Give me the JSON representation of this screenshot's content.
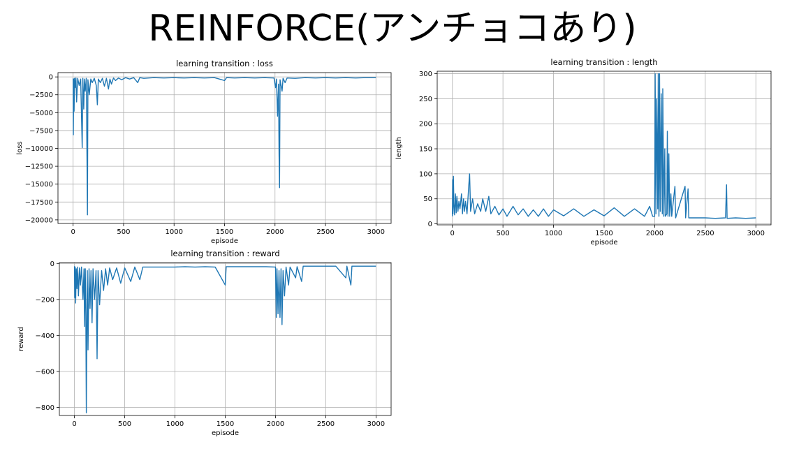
{
  "page": {
    "title": "REINFORCE(アンチョコあり)"
  },
  "chart_data": [
    {
      "id": "loss",
      "type": "line",
      "title": "learning transition : loss",
      "xlabel": "episode",
      "ylabel": "loss",
      "xlim": [
        -150,
        3150
      ],
      "ylim": [
        -20500,
        600
      ],
      "xticks": [
        0,
        500,
        1000,
        1500,
        2000,
        2500,
        3000
      ],
      "yticks": [
        0,
        -2500,
        -5000,
        -7500,
        -10000,
        -12500,
        -15000,
        -17500,
        -20000
      ],
      "ytick_labels": [
        "0",
        "−2500",
        "−5000",
        "−7500",
        "−10000",
        "−12500",
        "−15000",
        "−17500",
        "−20000"
      ],
      "grid": true,
      "color": "#1f77b4",
      "series": [
        {
          "values": [
            [
              0,
              -200
            ],
            [
              2,
              -8100
            ],
            [
              6,
              -300
            ],
            [
              10,
              -4800
            ],
            [
              14,
              -200
            ],
            [
              20,
              -1500
            ],
            [
              28,
              -150
            ],
            [
              35,
              -3500
            ],
            [
              45,
              -200
            ],
            [
              60,
              -1200
            ],
            [
              75,
              -300
            ],
            [
              90,
              -9900
            ],
            [
              96,
              -200
            ],
            [
              105,
              -4500
            ],
            [
              112,
              -300
            ],
            [
              120,
              -2000
            ],
            [
              130,
              -200
            ],
            [
              138,
              -11800
            ],
            [
              142,
              -19300
            ],
            [
              147,
              -400
            ],
            [
              160,
              -2500
            ],
            [
              175,
              -300
            ],
            [
              190,
              -800
            ],
            [
              210,
              -200
            ],
            [
              230,
              -1200
            ],
            [
              240,
              -3900
            ],
            [
              250,
              -300
            ],
            [
              270,
              -800
            ],
            [
              290,
              -200
            ],
            [
              310,
              -1300
            ],
            [
              330,
              -200
            ],
            [
              350,
              -1700
            ],
            [
              365,
              -300
            ],
            [
              380,
              -1000
            ],
            [
              400,
              -150
            ],
            [
              420,
              -500
            ],
            [
              450,
              -150
            ],
            [
              480,
              -400
            ],
            [
              520,
              -100
            ],
            [
              560,
              -300
            ],
            [
              600,
              -100
            ],
            [
              640,
              -800
            ],
            [
              660,
              -100
            ],
            [
              700,
              -200
            ],
            [
              800,
              -100
            ],
            [
              900,
              -150
            ],
            [
              1000,
              -100
            ],
            [
              1100,
              -150
            ],
            [
              1200,
              -100
            ],
            [
              1300,
              -150
            ],
            [
              1400,
              -100
            ],
            [
              1500,
              -500
            ],
            [
              1520,
              -100
            ],
            [
              1600,
              -150
            ],
            [
              1700,
              -100
            ],
            [
              1800,
              -150
            ],
            [
              1900,
              -100
            ],
            [
              1990,
              -150
            ],
            [
              2005,
              -1500
            ],
            [
              2015,
              -300
            ],
            [
              2025,
              -5500
            ],
            [
              2035,
              -1000
            ],
            [
              2040,
              -11000
            ],
            [
              2045,
              -15500
            ],
            [
              2050,
              -400
            ],
            [
              2070,
              -2000
            ],
            [
              2080,
              -200
            ],
            [
              2100,
              -800
            ],
            [
              2120,
              -150
            ],
            [
              2200,
              -200
            ],
            [
              2300,
              -100
            ],
            [
              2400,
              -150
            ],
            [
              2500,
              -100
            ],
            [
              2600,
              -150
            ],
            [
              2700,
              -100
            ],
            [
              2800,
              -150
            ],
            [
              2900,
              -100
            ],
            [
              3000,
              -100
            ]
          ]
        }
      ]
    },
    {
      "id": "length",
      "type": "line",
      "title": "learning transition : length",
      "xlabel": "episode",
      "ylabel": "length",
      "xlim": [
        -150,
        3150
      ],
      "ylim": [
        -2,
        305
      ],
      "xticks": [
        0,
        500,
        1000,
        1500,
        2000,
        2500,
        3000
      ],
      "yticks": [
        0,
        50,
        100,
        150,
        200,
        250,
        300
      ],
      "ytick_labels": [
        "0",
        "50",
        "100",
        "150",
        "200",
        "250",
        "300"
      ],
      "grid": true,
      "color": "#1f77b4",
      "series": [
        {
          "values": [
            [
              0,
              15
            ],
            [
              3,
              88
            ],
            [
              6,
              20
            ],
            [
              10,
              95
            ],
            [
              15,
              40
            ],
            [
              22,
              18
            ],
            [
              30,
              60
            ],
            [
              38,
              22
            ],
            [
              45,
              55
            ],
            [
              55,
              25
            ],
            [
              65,
              45
            ],
            [
              75,
              30
            ],
            [
              90,
              60
            ],
            [
              100,
              20
            ],
            [
              110,
              50
            ],
            [
              120,
              25
            ],
            [
              130,
              45
            ],
            [
              145,
              20
            ],
            [
              160,
              70
            ],
            [
              170,
              100
            ],
            [
              180,
              25
            ],
            [
              200,
              50
            ],
            [
              220,
              20
            ],
            [
              250,
              40
            ],
            [
              280,
              25
            ],
            [
              300,
              50
            ],
            [
              330,
              25
            ],
            [
              360,
              55
            ],
            [
              380,
              20
            ],
            [
              420,
              35
            ],
            [
              460,
              18
            ],
            [
              500,
              30
            ],
            [
              540,
              15
            ],
            [
              600,
              35
            ],
            [
              650,
              18
            ],
            [
              700,
              30
            ],
            [
              750,
              15
            ],
            [
              800,
              28
            ],
            [
              850,
              15
            ],
            [
              900,
              30
            ],
            [
              950,
              15
            ],
            [
              1000,
              28
            ],
            [
              1100,
              16
            ],
            [
              1200,
              30
            ],
            [
              1300,
              15
            ],
            [
              1400,
              28
            ],
            [
              1500,
              16
            ],
            [
              1600,
              32
            ],
            [
              1700,
              15
            ],
            [
              1800,
              30
            ],
            [
              1900,
              15
            ],
            [
              1950,
              35
            ],
            [
              1980,
              15
            ],
            [
              2000,
              15
            ],
            [
              2005,
              300
            ],
            [
              2012,
              20
            ],
            [
              2020,
              250
            ],
            [
              2030,
              30
            ],
            [
              2035,
              300
            ],
            [
              2042,
              15
            ],
            [
              2048,
              300
            ],
            [
              2055,
              25
            ],
            [
              2065,
              260
            ],
            [
              2075,
              20
            ],
            [
              2080,
              270
            ],
            [
              2090,
              15
            ],
            [
              2100,
              150
            ],
            [
              2105,
              15
            ],
            [
              2120,
              20
            ],
            [
              2125,
              185
            ],
            [
              2132,
              15
            ],
            [
              2140,
              140
            ],
            [
              2148,
              15
            ],
            [
              2160,
              60
            ],
            [
              2168,
              15
            ],
            [
              2200,
              75
            ],
            [
              2207,
              12
            ],
            [
              2300,
              75
            ],
            [
              2306,
              12
            ],
            [
              2330,
              70
            ],
            [
              2337,
              12
            ],
            [
              2400,
              12
            ],
            [
              2500,
              12
            ],
            [
              2600,
              11
            ],
            [
              2700,
              12
            ],
            [
              2710,
              78
            ],
            [
              2716,
              11
            ],
            [
              2800,
              12
            ],
            [
              2900,
              11
            ],
            [
              3000,
              12
            ]
          ]
        }
      ]
    },
    {
      "id": "reward",
      "type": "line",
      "title": "learning transition : reward",
      "xlabel": "episode",
      "ylabel": "reward",
      "xlim": [
        -150,
        3150
      ],
      "ylim": [
        -845,
        5
      ],
      "xticks": [
        0,
        500,
        1000,
        1500,
        2000,
        2500,
        3000
      ],
      "yticks": [
        0,
        -200,
        -400,
        -600,
        -800
      ],
      "ytick_labels": [
        "0",
        "−200",
        "−400",
        "−600",
        "−800"
      ],
      "grid": true,
      "color": "#1f77b4",
      "series": [
        {
          "values": [
            [
              0,
              -15
            ],
            [
              3,
              -190
            ],
            [
              7,
              -20
            ],
            [
              12,
              -220
            ],
            [
              18,
              -30
            ],
            [
              25,
              -140
            ],
            [
              32,
              -20
            ],
            [
              40,
              -180
            ],
            [
              50,
              -25
            ],
            [
              60,
              -120
            ],
            [
              70,
              -20
            ],
            [
              85,
              -200
            ],
            [
              95,
              -30
            ],
            [
              100,
              -350
            ],
            [
              108,
              -30
            ],
            [
              113,
              -290
            ],
            [
              118,
              -830
            ],
            [
              122,
              -430
            ],
            [
              128,
              -40
            ],
            [
              135,
              -480
            ],
            [
              145,
              -30
            ],
            [
              155,
              -250
            ],
            [
              165,
              -40
            ],
            [
              175,
              -330
            ],
            [
              185,
              -30
            ],
            [
              200,
              -200
            ],
            [
              215,
              -40
            ],
            [
              225,
              -530
            ],
            [
              235,
              -40
            ],
            [
              250,
              -230
            ],
            [
              270,
              -40
            ],
            [
              290,
              -150
            ],
            [
              310,
              -30
            ],
            [
              330,
              -120
            ],
            [
              350,
              -25
            ],
            [
              380,
              -90
            ],
            [
              420,
              -25
            ],
            [
              460,
              -110
            ],
            [
              500,
              -25
            ],
            [
              560,
              -100
            ],
            [
              600,
              -20
            ],
            [
              650,
              -90
            ],
            [
              680,
              -20
            ],
            [
              800,
              -20
            ],
            [
              900,
              -20
            ],
            [
              1000,
              -20
            ],
            [
              1100,
              -18
            ],
            [
              1200,
              -20
            ],
            [
              1300,
              -18
            ],
            [
              1400,
              -20
            ],
            [
              1500,
              -120
            ],
            [
              1510,
              -18
            ],
            [
              1600,
              -18
            ],
            [
              1700,
              -18
            ],
            [
              1800,
              -18
            ],
            [
              1900,
              -18
            ],
            [
              2000,
              -20
            ],
            [
              2008,
              -300
            ],
            [
              2015,
              -30
            ],
            [
              2025,
              -280
            ],
            [
              2035,
              -40
            ],
            [
              2045,
              -300
            ],
            [
              2055,
              -30
            ],
            [
              2065,
              -340
            ],
            [
              2075,
              -40
            ],
            [
              2090,
              -180
            ],
            [
              2105,
              -20
            ],
            [
              2130,
              -120
            ],
            [
              2145,
              -20
            ],
            [
              2200,
              -80
            ],
            [
              2215,
              -18
            ],
            [
              2260,
              -100
            ],
            [
              2275,
              -15
            ],
            [
              2350,
              -15
            ],
            [
              2500,
              -15
            ],
            [
              2600,
              -15
            ],
            [
              2700,
              -80
            ],
            [
              2710,
              -15
            ],
            [
              2750,
              -120
            ],
            [
              2760,
              -15
            ],
            [
              2850,
              -15
            ],
            [
              3000,
              -15
            ]
          ]
        }
      ]
    }
  ]
}
